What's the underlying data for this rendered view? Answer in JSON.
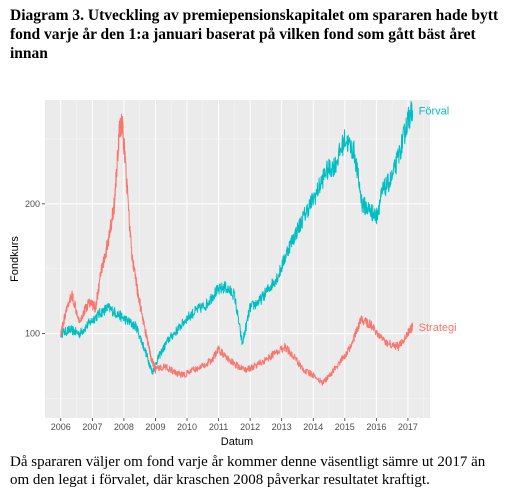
{
  "title": "Diagram 3. Utveckling av premiepensionskapitalet om spararen hade bytt fond varje år den 1:a januari baserat på vilken fond som gått bäst året innan",
  "caption": "Då spararen väljer om fond varje år kommer denne väsentligt sämre ut 2017 än om den legat i förvalet, där kraschen 2008 påverkar resultatet kraftigt.",
  "chart_data": {
    "type": "line",
    "xlabel": "Datum",
    "ylabel": "Fondkurs",
    "xlim": [
      2005.5,
      2017.7
    ],
    "ylim": [
      35,
      280
    ],
    "x_ticks": [
      "2006",
      "2007",
      "2008",
      "2009",
      "2010",
      "2011",
      "2012",
      "2013",
      "2014",
      "2015",
      "2016",
      "2017"
    ],
    "y_ticks": [
      100,
      200
    ],
    "grid": true,
    "legend": "labels at line ends",
    "series": [
      {
        "name": "Förval",
        "color": "#00BFC4",
        "x": [
          2006.0,
          2006.3,
          2006.6,
          2006.9,
          2007.2,
          2007.5,
          2007.8,
          2008.1,
          2008.4,
          2008.7,
          2008.9,
          2009.1,
          2009.4,
          2009.7,
          2010.0,
          2010.3,
          2010.6,
          2010.9,
          2011.2,
          2011.5,
          2011.75,
          2012.0,
          2012.3,
          2012.6,
          2012.9,
          2013.2,
          2013.5,
          2013.8,
          2014.1,
          2014.4,
          2014.7,
          2015.0,
          2015.3,
          2015.55,
          2015.8,
          2016.0,
          2016.2,
          2016.5,
          2016.8,
          2017.0,
          2017.15
        ],
        "y": [
          100,
          103,
          100,
          108,
          115,
          120,
          115,
          110,
          105,
          85,
          70,
          82,
          95,
          103,
          112,
          118,
          122,
          132,
          136,
          130,
          92,
          120,
          125,
          135,
          145,
          165,
          180,
          195,
          208,
          225,
          230,
          250,
          240,
          200,
          195,
          190,
          210,
          220,
          245,
          265,
          272
        ]
      },
      {
        "name": "Strategi",
        "color": "#F8766D",
        "x": [
          2006.0,
          2006.15,
          2006.35,
          2006.6,
          2006.9,
          2007.1,
          2007.3,
          2007.5,
          2007.7,
          2007.85,
          2007.95,
          2008.05,
          2008.25,
          2008.45,
          2008.7,
          2008.85,
          2009.0,
          2009.3,
          2009.6,
          2009.9,
          2010.2,
          2010.5,
          2010.8,
          2011.0,
          2011.3,
          2011.6,
          2011.9,
          2012.2,
          2012.5,
          2012.8,
          2013.1,
          2013.4,
          2013.7,
          2014.0,
          2014.3,
          2014.6,
          2014.9,
          2015.2,
          2015.5,
          2015.8,
          2016.1,
          2016.4,
          2016.7,
          2017.0,
          2017.15
        ],
        "y": [
          100,
          115,
          130,
          110,
          125,
          120,
          150,
          170,
          200,
          255,
          262,
          230,
          160,
          130,
          100,
          82,
          72,
          75,
          70,
          68,
          72,
          75,
          80,
          88,
          80,
          75,
          72,
          76,
          80,
          85,
          90,
          82,
          72,
          68,
          62,
          70,
          80,
          90,
          110,
          108,
          98,
          92,
          90,
          100,
          105
        ]
      }
    ]
  }
}
